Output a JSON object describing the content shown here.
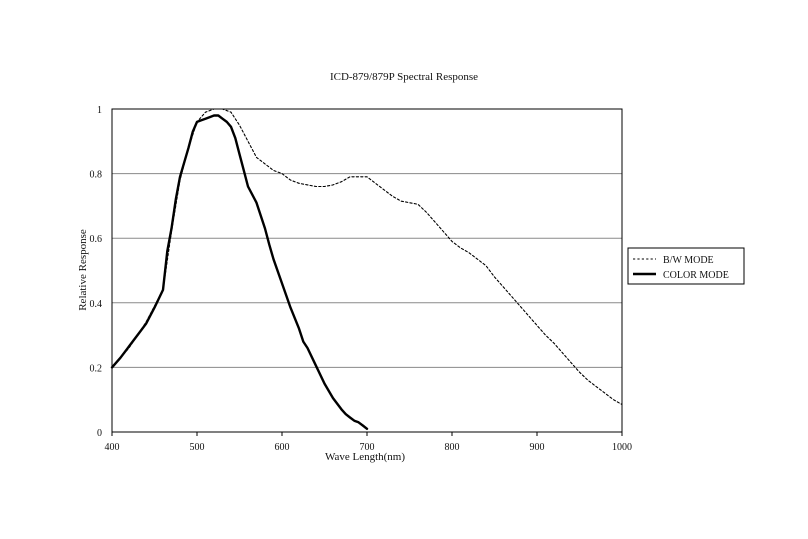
{
  "chart_data": {
    "type": "line",
    "title": "ICD-879/879P Spectral Response",
    "xlabel": "Wave Length(nm)",
    "ylabel": "Relative Response",
    "xlim": [
      400,
      1000
    ],
    "ylim": [
      0,
      1
    ],
    "x_ticks": [
      "400",
      "500",
      "600",
      "700",
      "800",
      "900",
      "1000"
    ],
    "y_ticks": [
      "0",
      "0.2",
      "0.4",
      "0.6",
      "0.8",
      "1"
    ],
    "grid": "horizontal",
    "legend_position": "right",
    "series": [
      {
        "name": "B/W MODE",
        "style": "dotted",
        "x": [
          400,
          410,
          420,
          430,
          440,
          450,
          460,
          470,
          480,
          490,
          500,
          510,
          520,
          530,
          540,
          550,
          560,
          570,
          580,
          590,
          600,
          610,
          620,
          630,
          640,
          650,
          660,
          670,
          680,
          690,
          700,
          710,
          720,
          730,
          740,
          750,
          760,
          770,
          780,
          790,
          800,
          810,
          820,
          830,
          840,
          850,
          860,
          870,
          880,
          890,
          900,
          910,
          920,
          930,
          940,
          950,
          960,
          970,
          980,
          990,
          1000
        ],
        "y": [
          0.2,
          0.23,
          0.26,
          0.3,
          0.34,
          0.39,
          0.44,
          0.62,
          0.78,
          0.88,
          0.96,
          0.99,
          1.0,
          1.0,
          0.99,
          0.95,
          0.9,
          0.85,
          0.83,
          0.81,
          0.8,
          0.78,
          0.77,
          0.765,
          0.76,
          0.76,
          0.765,
          0.775,
          0.79,
          0.79,
          0.79,
          0.77,
          0.75,
          0.73,
          0.715,
          0.71,
          0.705,
          0.68,
          0.65,
          0.62,
          0.59,
          0.57,
          0.555,
          0.535,
          0.515,
          0.48,
          0.45,
          0.42,
          0.39,
          0.36,
          0.33,
          0.3,
          0.275,
          0.245,
          0.215,
          0.185,
          0.16,
          0.14,
          0.12,
          0.1,
          0.085
        ]
      },
      {
        "name": "COLOR MODE",
        "style": "solid",
        "x": [
          400,
          410,
          420,
          430,
          440,
          450,
          460,
          465,
          470,
          475,
          480,
          490,
          495,
          500,
          505,
          510,
          515,
          520,
          525,
          530,
          535,
          540,
          545,
          550,
          555,
          560,
          570,
          580,
          585,
          590,
          600,
          610,
          620,
          625,
          630,
          640,
          650,
          660,
          670,
          675,
          680,
          685,
          690,
          695,
          700
        ],
        "y": [
          0.2,
          0.23,
          0.265,
          0.3,
          0.335,
          0.385,
          0.44,
          0.56,
          0.63,
          0.72,
          0.79,
          0.88,
          0.93,
          0.96,
          0.965,
          0.97,
          0.975,
          0.98,
          0.98,
          0.97,
          0.96,
          0.945,
          0.91,
          0.86,
          0.81,
          0.76,
          0.71,
          0.63,
          0.58,
          0.535,
          0.46,
          0.385,
          0.32,
          0.28,
          0.26,
          0.205,
          0.15,
          0.105,
          0.07,
          0.055,
          0.045,
          0.035,
          0.03,
          0.02,
          0.01
        ]
      }
    ]
  }
}
